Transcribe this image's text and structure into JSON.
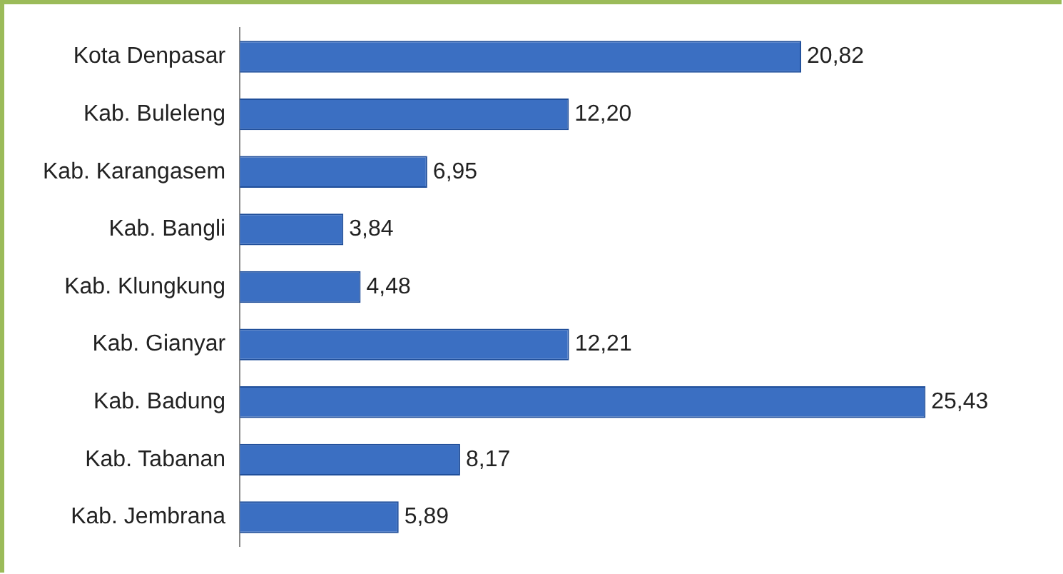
{
  "chart_data": {
    "type": "bar",
    "orientation": "horizontal",
    "categories": [
      "Kota Denpasar",
      "Kab. Buleleng",
      "Kab. Karangasem",
      "Kab. Bangli",
      "Kab. Klungkung",
      "Kab. Gianyar",
      "Kab. Badung",
      "Kab. Tabanan",
      "Kab. Jembrana"
    ],
    "values": [
      20.82,
      12.2,
      6.95,
      3.84,
      4.48,
      12.21,
      25.43,
      8.17,
      5.89
    ],
    "value_labels": [
      "20,82",
      "12,20",
      "6,95",
      "3,84",
      "4,48",
      "12,21",
      "25,43",
      "8,17",
      "5,89"
    ],
    "color": "#3b6fc2",
    "legend": false,
    "tick_labels": "y"
  }
}
